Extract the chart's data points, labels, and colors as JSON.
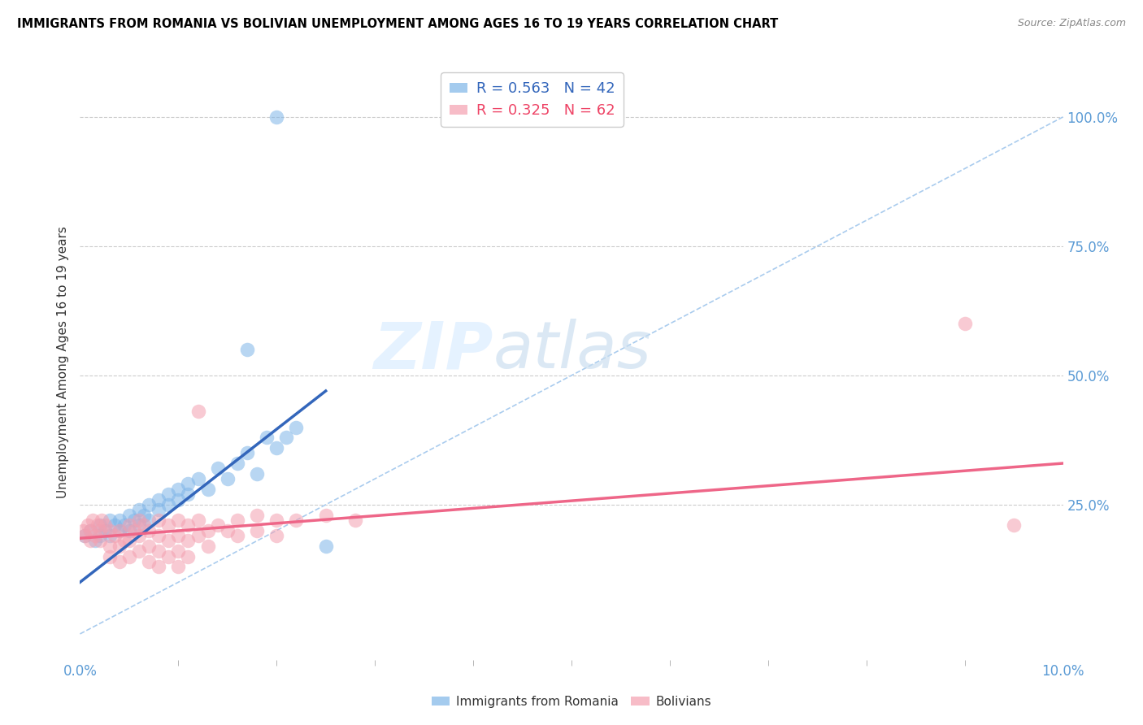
{
  "title": "IMMIGRANTS FROM ROMANIA VS BOLIVIAN UNEMPLOYMENT AMONG AGES 16 TO 19 YEARS CORRELATION CHART",
  "source": "Source: ZipAtlas.com",
  "ylabel": "Unemployment Among Ages 16 to 19 years",
  "right_yticks": [
    "100.0%",
    "75.0%",
    "50.0%",
    "25.0%"
  ],
  "right_ytick_vals": [
    1.0,
    0.75,
    0.5,
    0.25
  ],
  "romania_color": "#7EB5E8",
  "bolivia_color": "#F4A0B0",
  "trendline_romania_color": "#3366BB",
  "trendline_bolivia_color": "#EE6688",
  "diagonal_color": "#AACCEE",
  "watermark_zip": "ZIP",
  "watermark_atlas": "atlas",
  "xlim": [
    0.0,
    0.1
  ],
  "ylim": [
    -0.05,
    1.1
  ],
  "romania_points": [
    [
      0.0005,
      0.19
    ],
    [
      0.001,
      0.2
    ],
    [
      0.0015,
      0.18
    ],
    [
      0.002,
      0.21
    ],
    [
      0.002,
      0.19
    ],
    [
      0.0025,
      0.2
    ],
    [
      0.003,
      0.22
    ],
    [
      0.003,
      0.19
    ],
    [
      0.0035,
      0.21
    ],
    [
      0.004,
      0.2
    ],
    [
      0.004,
      0.22
    ],
    [
      0.0045,
      0.21
    ],
    [
      0.005,
      0.23
    ],
    [
      0.005,
      0.2
    ],
    [
      0.0055,
      0.22
    ],
    [
      0.006,
      0.24
    ],
    [
      0.006,
      0.21
    ],
    [
      0.0065,
      0.23
    ],
    [
      0.007,
      0.25
    ],
    [
      0.007,
      0.22
    ],
    [
      0.008,
      0.24
    ],
    [
      0.008,
      0.26
    ],
    [
      0.009,
      0.27
    ],
    [
      0.009,
      0.25
    ],
    [
      0.01,
      0.26
    ],
    [
      0.01,
      0.28
    ],
    [
      0.011,
      0.27
    ],
    [
      0.011,
      0.29
    ],
    [
      0.012,
      0.3
    ],
    [
      0.013,
      0.28
    ],
    [
      0.014,
      0.32
    ],
    [
      0.015,
      0.3
    ],
    [
      0.016,
      0.33
    ],
    [
      0.017,
      0.35
    ],
    [
      0.018,
      0.31
    ],
    [
      0.019,
      0.38
    ],
    [
      0.02,
      0.36
    ],
    [
      0.021,
      0.38
    ],
    [
      0.017,
      0.55
    ],
    [
      0.022,
      0.4
    ],
    [
      0.025,
      0.17
    ],
    [
      0.02,
      1.0
    ]
  ],
  "bolivia_points": [
    [
      0.0003,
      0.2
    ],
    [
      0.0005,
      0.19
    ],
    [
      0.0008,
      0.21
    ],
    [
      0.001,
      0.2
    ],
    [
      0.001,
      0.18
    ],
    [
      0.0013,
      0.22
    ],
    [
      0.0015,
      0.19
    ],
    [
      0.0018,
      0.21
    ],
    [
      0.002,
      0.2
    ],
    [
      0.002,
      0.18
    ],
    [
      0.0022,
      0.22
    ],
    [
      0.0025,
      0.21
    ],
    [
      0.003,
      0.2
    ],
    [
      0.003,
      0.17
    ],
    [
      0.003,
      0.15
    ],
    [
      0.0035,
      0.19
    ],
    [
      0.004,
      0.2
    ],
    [
      0.004,
      0.17
    ],
    [
      0.004,
      0.14
    ],
    [
      0.0045,
      0.18
    ],
    [
      0.005,
      0.21
    ],
    [
      0.005,
      0.18
    ],
    [
      0.005,
      0.15
    ],
    [
      0.0055,
      0.2
    ],
    [
      0.006,
      0.22
    ],
    [
      0.006,
      0.19
    ],
    [
      0.006,
      0.16
    ],
    [
      0.0065,
      0.21
    ],
    [
      0.007,
      0.2
    ],
    [
      0.007,
      0.17
    ],
    [
      0.007,
      0.14
    ],
    [
      0.008,
      0.22
    ],
    [
      0.008,
      0.19
    ],
    [
      0.008,
      0.16
    ],
    [
      0.008,
      0.13
    ],
    [
      0.009,
      0.21
    ],
    [
      0.009,
      0.18
    ],
    [
      0.009,
      0.15
    ],
    [
      0.01,
      0.22
    ],
    [
      0.01,
      0.19
    ],
    [
      0.01,
      0.16
    ],
    [
      0.01,
      0.13
    ],
    [
      0.011,
      0.21
    ],
    [
      0.011,
      0.18
    ],
    [
      0.011,
      0.15
    ],
    [
      0.012,
      0.22
    ],
    [
      0.012,
      0.19
    ],
    [
      0.012,
      0.43
    ],
    [
      0.013,
      0.2
    ],
    [
      0.013,
      0.17
    ],
    [
      0.014,
      0.21
    ],
    [
      0.015,
      0.2
    ],
    [
      0.016,
      0.22
    ],
    [
      0.016,
      0.19
    ],
    [
      0.018,
      0.23
    ],
    [
      0.018,
      0.2
    ],
    [
      0.02,
      0.22
    ],
    [
      0.02,
      0.19
    ],
    [
      0.022,
      0.22
    ],
    [
      0.025,
      0.23
    ],
    [
      0.028,
      0.22
    ],
    [
      0.09,
      0.6
    ],
    [
      0.095,
      0.21
    ]
  ]
}
